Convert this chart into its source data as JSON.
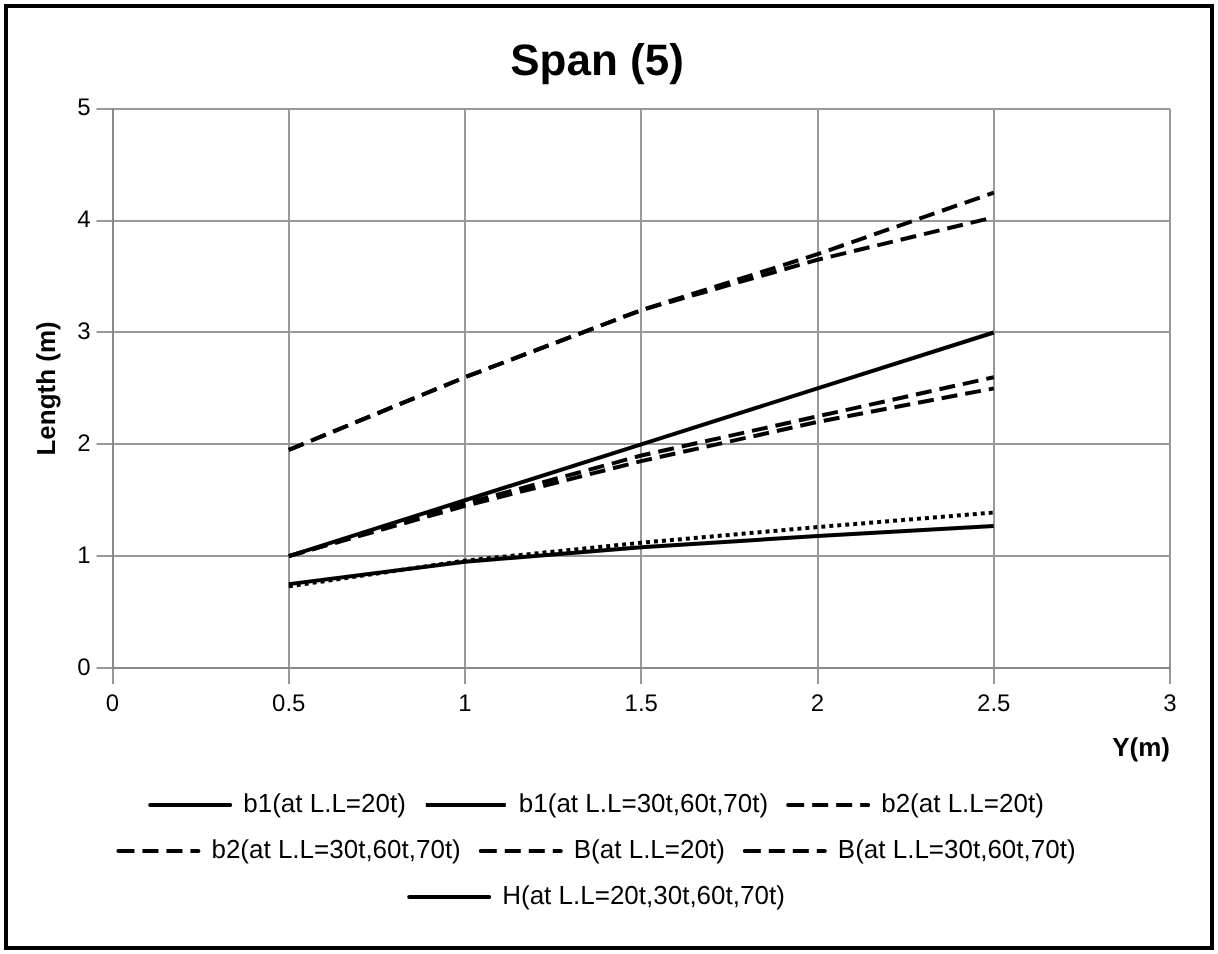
{
  "chart_data": {
    "type": "line",
    "title": "Span (5)",
    "xlabel": "Y(m)",
    "ylabel": "Length (m)",
    "x": [
      0.5,
      1,
      1.5,
      2,
      2.5
    ],
    "xlim": [
      0,
      3
    ],
    "xticks": [
      0,
      0.5,
      1,
      1.5,
      2,
      2.5,
      3
    ],
    "ylim": [
      0,
      5
    ],
    "yticks": [
      0,
      1,
      2,
      3,
      4,
      5
    ],
    "grid": true,
    "legend": "bottom",
    "marker": "none",
    "series": [
      {
        "name": "b1(at L.L=20t)",
        "color": "#000000",
        "line_style": "solid",
        "values": [
          0.75,
          0.95,
          1.08,
          1.18,
          1.27
        ]
      },
      {
        "name": "b1(at L.L=30t,60t,70t)",
        "color": "#000000",
        "line_style": "dotted",
        "values": [
          0.73,
          0.96,
          1.12,
          1.26,
          1.39
        ]
      },
      {
        "name": "b2(at L.L=20t)",
        "color": "#000000",
        "line_style": "dashed",
        "values": [
          1.0,
          1.45,
          1.85,
          2.2,
          2.5
        ]
      },
      {
        "name": "b2(at L.L=30t,60t,70t)",
        "color": "#000000",
        "line_style": "dashed",
        "values": [
          1.0,
          1.47,
          1.9,
          2.25,
          2.6
        ]
      },
      {
        "name": "B(at L.L=20t)",
        "color": "#000000",
        "line_style": "dashed",
        "values": [
          1.95,
          2.6,
          3.2,
          3.65,
          4.03
        ]
      },
      {
        "name": "B(at L.L=30t,60t,70t)",
        "color": "#000000",
        "line_style": "dashed",
        "values": [
          1.95,
          2.6,
          3.2,
          3.7,
          4.25
        ]
      },
      {
        "name": "H(at L.L=20t,30t,60t,70t)",
        "color": "#000000",
        "line_style": "solid",
        "values": [
          1.0,
          1.5,
          2.0,
          2.5,
          3.0
        ]
      }
    ]
  }
}
